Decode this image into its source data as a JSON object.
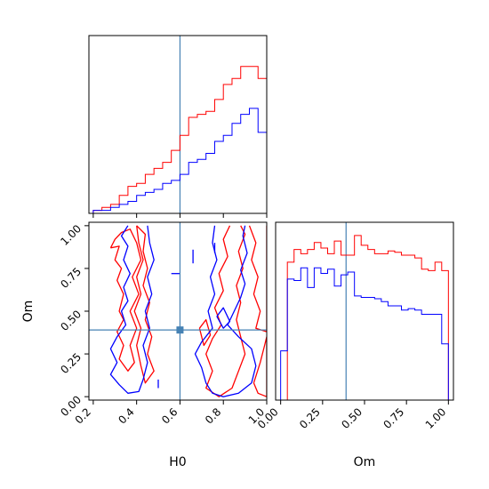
{
  "chart_data": {
    "type": "corner",
    "parameters": [
      "H0",
      "Om"
    ],
    "truths": {
      "H0": 0.6,
      "Om": 0.39
    },
    "colors": {
      "red": "#ff0000",
      "blue": "#0000ff",
      "truth": "#4682b4"
    },
    "series": [
      {
        "color": "red",
        "name": ""
      },
      {
        "color": "blue",
        "name": ""
      }
    ],
    "h0_hist": {
      "bin_edges": [
        0.2,
        0.24,
        0.28,
        0.32,
        0.36,
        0.4,
        0.44,
        0.48,
        0.52,
        0.56,
        0.6,
        0.64,
        0.68,
        0.72,
        0.76,
        0.8,
        0.84,
        0.88,
        0.92,
        0.96,
        1.0
      ],
      "red": [
        1,
        2,
        3,
        6,
        9,
        10,
        13,
        15,
        17,
        21,
        26,
        32,
        33,
        34,
        38,
        43,
        45,
        49,
        49,
        45
      ],
      "blue": [
        1,
        1,
        2,
        3,
        4,
        6,
        7,
        8,
        10,
        11,
        13,
        17,
        18,
        20,
        24,
        26,
        30,
        33,
        35,
        27
      ]
    },
    "om_hist": {
      "bin_edges": [
        0.0,
        0.04,
        0.08,
        0.12,
        0.16,
        0.2,
        0.24,
        0.28,
        0.32,
        0.36,
        0.4,
        0.44,
        0.48,
        0.52,
        0.56,
        0.6,
        0.64,
        0.68,
        0.72,
        0.76,
        0.8,
        0.84,
        0.88,
        0.92,
        0.96,
        1.0
      ],
      "red": [
        0,
        98,
        107,
        104,
        107,
        112,
        108,
        104,
        113,
        103,
        103,
        117,
        110,
        107,
        104,
        104,
        106,
        105,
        103,
        103,
        101,
        93,
        92,
        98,
        92
      ],
      "blue": [
        35,
        86,
        85,
        94,
        80,
        94,
        90,
        93,
        81,
        89,
        91,
        74,
        73,
        73,
        72,
        70,
        67,
        67,
        64,
        65,
        64,
        61,
        61,
        61,
        40
      ]
    },
    "x_ticks_h0": [
      "0.2",
      "0.4",
      "0.6",
      "0.8",
      "1.0"
    ],
    "x_tick_values_h0": [
      0.2,
      0.4,
      0.6,
      0.8,
      1.0
    ],
    "x_ticks_om": [
      "0.00",
      "0.25",
      "0.50",
      "0.75",
      "1.00"
    ],
    "x_tick_values_om": [
      0.0,
      0.25,
      0.5,
      0.75,
      1.0
    ],
    "y_ticks_om": [
      "0.00",
      "0.25",
      "0.50",
      "0.75",
      "1.00"
    ],
    "y_tick_values_om": [
      0.0,
      0.25,
      0.5,
      0.75,
      1.0
    ],
    "xlim_h0": [
      0.18,
      1.0
    ],
    "xlim_om": [
      -0.03,
      1.03
    ],
    "ylim_om": [
      -0.02,
      1.02
    ],
    "contours": {
      "red": [
        [
          [
            0.28,
            0.87
          ],
          [
            0.32,
            0.88
          ],
          [
            0.3,
            0.8
          ],
          [
            0.33,
            0.75
          ],
          [
            0.31,
            0.68
          ],
          [
            0.34,
            0.6
          ],
          [
            0.32,
            0.5
          ],
          [
            0.34,
            0.45
          ],
          [
            0.31,
            0.38
          ],
          [
            0.34,
            0.3
          ],
          [
            0.32,
            0.22
          ],
          [
            0.36,
            0.15
          ],
          [
            0.39,
            0.2
          ],
          [
            0.37,
            0.3
          ],
          [
            0.4,
            0.4
          ],
          [
            0.37,
            0.5
          ],
          [
            0.41,
            0.6
          ],
          [
            0.38,
            0.7
          ],
          [
            0.42,
            0.8
          ],
          [
            0.4,
            0.9
          ],
          [
            0.37,
            0.98
          ],
          [
            0.33,
            0.96
          ],
          [
            0.3,
            0.92
          ],
          [
            0.28,
            0.87
          ]
        ],
        [
          [
            0.4,
            1.0
          ],
          [
            0.44,
            0.95
          ],
          [
            0.43,
            0.85
          ],
          [
            0.45,
            0.75
          ],
          [
            0.43,
            0.65
          ],
          [
            0.46,
            0.55
          ],
          [
            0.44,
            0.45
          ],
          [
            0.47,
            0.35
          ],
          [
            0.45,
            0.25
          ],
          [
            0.48,
            0.15
          ],
          [
            0.44,
            0.08
          ],
          [
            0.42,
            0.18
          ],
          [
            0.4,
            0.3
          ],
          [
            0.42,
            0.4
          ],
          [
            0.39,
            0.5
          ],
          [
            0.42,
            0.6
          ],
          [
            0.4,
            0.7
          ],
          [
            0.43,
            0.8
          ],
          [
            0.41,
            0.9
          ],
          [
            0.4,
            1.0
          ]
        ],
        [
          [
            0.83,
            1.0
          ],
          [
            0.8,
            0.92
          ],
          [
            0.82,
            0.82
          ],
          [
            0.78,
            0.72
          ],
          [
            0.8,
            0.62
          ],
          [
            0.76,
            0.52
          ],
          [
            0.79,
            0.42
          ],
          [
            0.75,
            0.34
          ],
          [
            0.72,
            0.25
          ],
          [
            0.75,
            0.15
          ],
          [
            0.72,
            0.05
          ],
          [
            0.78,
            0.0
          ],
          [
            0.84,
            0.05
          ],
          [
            0.87,
            0.15
          ],
          [
            0.9,
            0.25
          ],
          [
            0.88,
            0.35
          ],
          [
            0.86,
            0.45
          ],
          [
            0.88,
            0.55
          ],
          [
            0.86,
            0.65
          ],
          [
            0.89,
            0.75
          ],
          [
            0.87,
            0.85
          ],
          [
            0.9,
            0.95
          ],
          [
            0.88,
            1.0
          ]
        ],
        [
          [
            0.92,
            1.0
          ],
          [
            0.95,
            0.9
          ],
          [
            0.93,
            0.8
          ],
          [
            0.96,
            0.7
          ],
          [
            0.94,
            0.6
          ],
          [
            0.97,
            0.5
          ],
          [
            0.95,
            0.4
          ],
          [
            1.0,
            0.38
          ],
          [
            1.0,
            1.0
          ]
        ],
        [
          [
            0.69,
            0.4
          ],
          [
            0.72,
            0.45
          ],
          [
            0.74,
            0.36
          ],
          [
            0.71,
            0.3
          ],
          [
            0.69,
            0.4
          ]
        ],
        [
          [
            0.94,
            0.08
          ],
          [
            0.97,
            0.2
          ],
          [
            0.99,
            0.3
          ],
          [
            1.0,
            0.35
          ],
          [
            1.0,
            0.0
          ],
          [
            0.96,
            0.02
          ],
          [
            0.94,
            0.08
          ]
        ]
      ],
      "blue": [
        [
          [
            0.36,
            1.0
          ],
          [
            0.33,
            0.94
          ],
          [
            0.36,
            0.88
          ],
          [
            0.34,
            0.8
          ],
          [
            0.37,
            0.72
          ],
          [
            0.34,
            0.64
          ],
          [
            0.36,
            0.56
          ],
          [
            0.33,
            0.5
          ],
          [
            0.35,
            0.42
          ],
          [
            0.31,
            0.35
          ],
          [
            0.28,
            0.28
          ],
          [
            0.31,
            0.2
          ],
          [
            0.28,
            0.13
          ],
          [
            0.32,
            0.07
          ],
          [
            0.36,
            0.02
          ],
          [
            0.41,
            0.03
          ],
          [
            0.43,
            0.1
          ],
          [
            0.45,
            0.2
          ],
          [
            0.43,
            0.3
          ],
          [
            0.46,
            0.4
          ],
          [
            0.44,
            0.5
          ],
          [
            0.47,
            0.6
          ],
          [
            0.45,
            0.7
          ],
          [
            0.48,
            0.8
          ],
          [
            0.46,
            0.9
          ],
          [
            0.45,
            1.0
          ]
        ],
        [
          [
            0.76,
            1.0
          ],
          [
            0.75,
            0.9
          ],
          [
            0.77,
            0.8
          ],
          [
            0.74,
            0.7
          ],
          [
            0.76,
            0.6
          ],
          [
            0.73,
            0.5
          ],
          [
            0.75,
            0.4
          ],
          [
            0.7,
            0.32
          ],
          [
            0.67,
            0.25
          ],
          [
            0.7,
            0.17
          ],
          [
            0.72,
            0.08
          ],
          [
            0.75,
            0.02
          ],
          [
            0.8,
            0.0
          ],
          [
            0.87,
            0.02
          ],
          [
            0.93,
            0.08
          ],
          [
            0.95,
            0.18
          ],
          [
            0.93,
            0.28
          ],
          [
            0.87,
            0.35
          ],
          [
            0.82,
            0.42
          ],
          [
            0.85,
            0.5
          ],
          [
            0.88,
            0.58
          ],
          [
            0.9,
            0.66
          ],
          [
            0.88,
            0.74
          ],
          [
            0.91,
            0.84
          ],
          [
            0.89,
            0.94
          ],
          [
            0.9,
            1.0
          ]
        ],
        [
          [
            0.77,
            0.47
          ],
          [
            0.8,
            0.52
          ],
          [
            0.83,
            0.44
          ],
          [
            0.8,
            0.4
          ],
          [
            0.77,
            0.47
          ]
        ],
        [
          [
            0.56,
            0.72
          ],
          [
            0.6,
            0.72
          ]
        ],
        [
          [
            0.66,
            0.78
          ],
          [
            0.66,
            0.86
          ]
        ],
        [
          [
            0.76,
            0.84
          ],
          [
            0.76,
            0.9
          ]
        ],
        [
          [
            0.5,
            0.05
          ],
          [
            0.5,
            0.1
          ]
        ]
      ]
    }
  }
}
